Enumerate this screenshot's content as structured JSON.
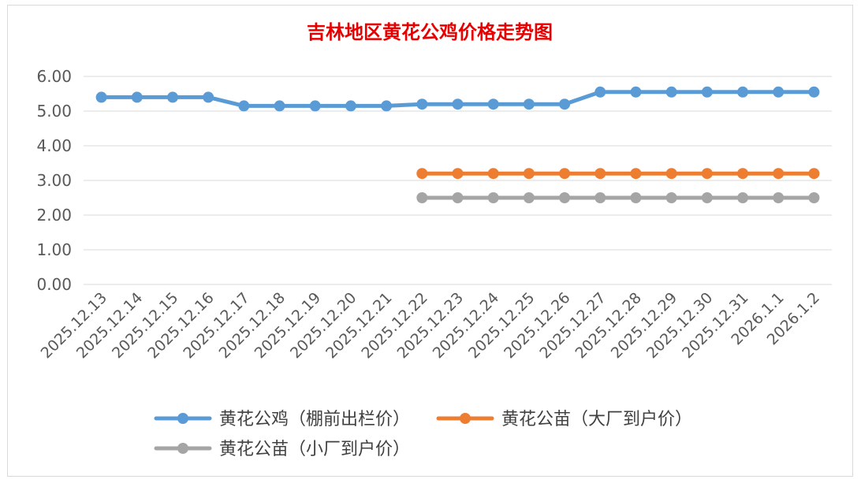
{
  "chart_data": {
    "type": "line",
    "title": "吉林地区黄花公鸡价格走势图",
    "xlabel": "",
    "ylabel": "",
    "ylim": [
      0,
      6
    ],
    "yticks": [
      "0.00",
      "1.00",
      "2.00",
      "3.00",
      "4.00",
      "5.00",
      "6.00"
    ],
    "grid": true,
    "legend_position": "bottom",
    "categories": [
      "2025.12.13",
      "2025.12.14",
      "2025.12.15",
      "2025.12.16",
      "2025.12.17",
      "2025.12.18",
      "2025.12.19",
      "2025.12.20",
      "2025.12.21",
      "2025.12.22",
      "2025.12.23",
      "2025.12.24",
      "2025.12.25",
      "2025.12.26",
      "2025.12.27",
      "2025.12.28",
      "2025.12.29",
      "2025.12.30",
      "2025.12.31",
      "2026.1.1",
      "2026.1.2"
    ],
    "series": [
      {
        "name": "黄花公鸡（棚前出栏价）",
        "color": "#5b9bd5",
        "values": [
          5.4,
          5.4,
          5.4,
          5.4,
          5.15,
          5.15,
          5.15,
          5.15,
          5.15,
          5.2,
          5.2,
          5.2,
          5.2,
          5.2,
          5.55,
          5.55,
          5.55,
          5.55,
          5.55,
          5.55,
          5.55
        ]
      },
      {
        "name": "黄花公苗（大厂到户价）",
        "color": "#ed7d31",
        "values": [
          null,
          null,
          null,
          null,
          null,
          null,
          null,
          null,
          null,
          3.2,
          3.2,
          3.2,
          3.2,
          3.2,
          3.2,
          3.2,
          3.2,
          3.2,
          3.2,
          3.2,
          3.2
        ]
      },
      {
        "name": "黄花公苗（小厂到户价）",
        "color": "#a5a5a5",
        "values": [
          null,
          null,
          null,
          null,
          null,
          null,
          null,
          null,
          null,
          2.5,
          2.5,
          2.5,
          2.5,
          2.5,
          2.5,
          2.5,
          2.5,
          2.5,
          2.5,
          2.5,
          2.5
        ]
      }
    ]
  }
}
